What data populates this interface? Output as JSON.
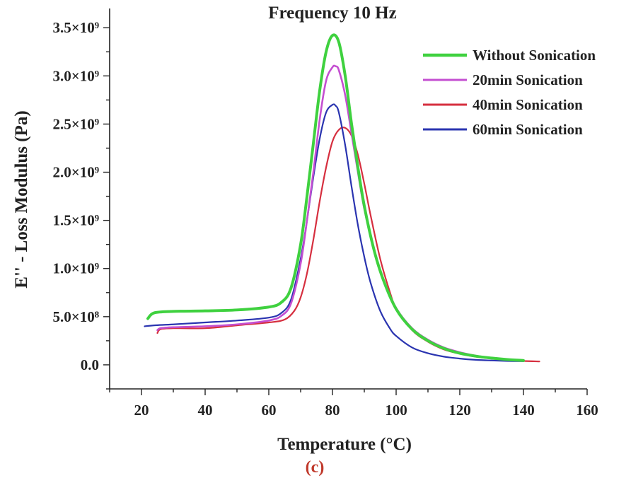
{
  "panel_label": "(c)",
  "chart_data": {
    "type": "line",
    "title": "Frequency 10 Hz",
    "xlabel": "Temperature (°C)",
    "ylabel": "E'' - Loss Modulus (Pa)",
    "xlim": [
      10,
      160
    ],
    "ylim": [
      -250000000,
      3700000000
    ],
    "x_ticks": [
      20,
      40,
      60,
      80,
      100,
      120,
      140,
      160
    ],
    "x_tick_labels": [
      "20",
      "40",
      "60",
      "80",
      "100",
      "120",
      "140",
      "160"
    ],
    "y_ticks": [
      0,
      500000000,
      1000000000,
      1500000000,
      2000000000,
      2500000000,
      3000000000,
      3500000000
    ],
    "y_tick_labels": [
      "0.0",
      "5.0×10⁸",
      "1.0×10⁹",
      "1.5×10⁹",
      "2.0×10⁹",
      "2.5×10⁹",
      "3.0×10⁹",
      "3.5×10⁹"
    ],
    "legend_position": "top-right",
    "series": [
      {
        "name": "Without Sonication",
        "color": "#3fd13f",
        "x": [
          22,
          24,
          30,
          40,
          50,
          60,
          64,
          67,
          70,
          72,
          74,
          76,
          78,
          80,
          82,
          84,
          86,
          88,
          90,
          93,
          96,
          100,
          105,
          110,
          115,
          120,
          125,
          130,
          135,
          140
        ],
        "y": [
          480000000,
          540000000,
          555000000,
          560000000,
          570000000,
          600000000,
          650000000,
          800000000,
          1250000000,
          1750000000,
          2300000000,
          2850000000,
          3250000000,
          3420000000,
          3350000000,
          3000000000,
          2500000000,
          2050000000,
          1650000000,
          1200000000,
          880000000,
          580000000,
          370000000,
          250000000,
          170000000,
          120000000,
          90000000,
          70000000,
          55000000,
          45000000
        ]
      },
      {
        "name": "20min Sonication",
        "color": "#c44fd1",
        "x": [
          25,
          26,
          30,
          40,
          50,
          60,
          64,
          67,
          70,
          72,
          74,
          76,
          78,
          80,
          81,
          82,
          84,
          86,
          88,
          90,
          93,
          96,
          100,
          105,
          110,
          115,
          120,
          125,
          130,
          135,
          140
        ],
        "y": [
          360000000,
          380000000,
          390000000,
          400000000,
          420000000,
          460000000,
          510000000,
          640000000,
          1050000000,
          1500000000,
          2000000000,
          2550000000,
          2950000000,
          3090000000,
          3100000000,
          3060000000,
          2800000000,
          2400000000,
          2000000000,
          1620000000,
          1200000000,
          880000000,
          590000000,
          380000000,
          260000000,
          180000000,
          130000000,
          95000000,
          70000000,
          55000000,
          45000000
        ]
      },
      {
        "name": "40min Sonication",
        "color": "#d62f3f",
        "x": [
          25,
          26,
          30,
          40,
          50,
          60,
          65,
          68,
          70,
          72,
          74,
          76,
          78,
          80,
          82,
          84,
          86,
          88,
          90,
          92,
          95,
          98,
          100,
          105,
          110,
          115,
          120,
          125,
          130,
          135,
          140,
          145
        ],
        "y": [
          330000000,
          370000000,
          380000000,
          380000000,
          410000000,
          440000000,
          470000000,
          560000000,
          700000000,
          950000000,
          1300000000,
          1700000000,
          2050000000,
          2320000000,
          2440000000,
          2460000000,
          2380000000,
          2180000000,
          1880000000,
          1550000000,
          1100000000,
          760000000,
          590000000,
          360000000,
          240000000,
          160000000,
          115000000,
          85000000,
          65000000,
          50000000,
          40000000,
          35000000
        ]
      },
      {
        "name": "60min Sonication",
        "color": "#2a34b0",
        "x": [
          21,
          24,
          30,
          40,
          50,
          60,
          64,
          67,
          70,
          72,
          74,
          76,
          78,
          80,
          81,
          82,
          84,
          86,
          88,
          90,
          92,
          95,
          98,
          100,
          105,
          110,
          115,
          120,
          125,
          130,
          135,
          140
        ],
        "y": [
          400000000,
          410000000,
          420000000,
          440000000,
          460000000,
          490000000,
          540000000,
          680000000,
          1100000000,
          1500000000,
          1950000000,
          2350000000,
          2620000000,
          2700000000,
          2690000000,
          2620000000,
          2280000000,
          1850000000,
          1450000000,
          1120000000,
          850000000,
          560000000,
          380000000,
          300000000,
          180000000,
          120000000,
          85000000,
          65000000,
          52000000,
          45000000,
          40000000,
          38000000
        ]
      }
    ]
  }
}
